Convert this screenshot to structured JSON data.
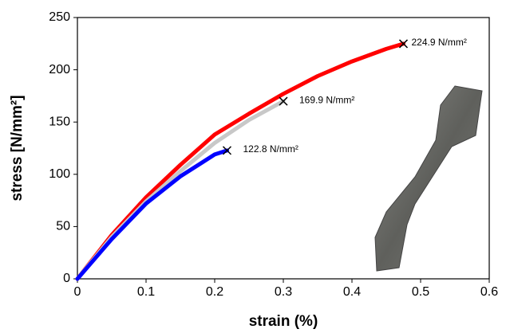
{
  "chart_data": {
    "type": "line",
    "xlabel": "strain (%)",
    "ylabel": "stress [N/mm²]",
    "xlim": [
      0,
      0.6
    ],
    "xticks": [
      0,
      0.1,
      0.2,
      0.3,
      0.4,
      0.5,
      0.6
    ],
    "ylim": [
      0,
      250
    ],
    "yticks": [
      0,
      50,
      100,
      150,
      200,
      250
    ],
    "grid": false,
    "series": [
      {
        "color": "#ff0000",
        "x": [
          0,
          0.05,
          0.1,
          0.15,
          0.2,
          0.25,
          0.3,
          0.35,
          0.4,
          0.45,
          0.475
        ],
        "values": [
          0,
          42,
          78,
          109,
          138,
          158,
          177,
          194,
          208,
          220,
          224.9
        ]
      },
      {
        "color": "#c8c8c8",
        "x": [
          0,
          0.05,
          0.1,
          0.15,
          0.2,
          0.25,
          0.3
        ],
        "values": [
          0,
          40,
          74,
          103,
          130,
          152,
          169.9
        ]
      },
      {
        "color": "#0000ff",
        "x": [
          0,
          0.05,
          0.1,
          0.15,
          0.2,
          0.218
        ],
        "values": [
          0,
          38,
          72,
          98,
          119,
          122.8
        ]
      }
    ],
    "annotations": [
      {
        "x": 0.475,
        "y": 224.9,
        "label": "224.9 N/mm²"
      },
      {
        "x": 0.3,
        "y": 169.9,
        "label": "169.9 N/mm²"
      },
      {
        "x": 0.218,
        "y": 122.8,
        "label": "122.8 N/mm²"
      }
    ]
  }
}
